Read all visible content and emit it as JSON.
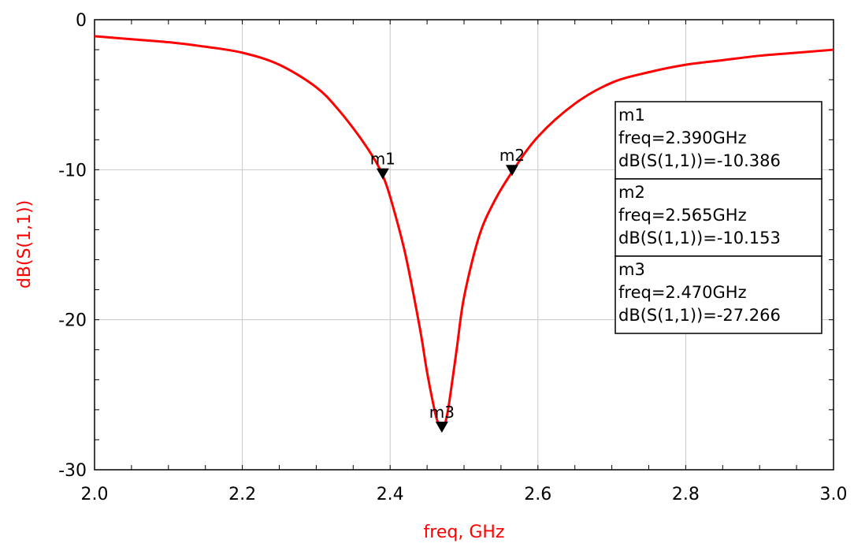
{
  "chart_data": {
    "type": "line",
    "xlabel": "freq, GHz",
    "ylabel": "dB(S(1,1))",
    "xlim": [
      2.0,
      3.0
    ],
    "ylim": [
      -30,
      0
    ],
    "x_ticks": [
      "2.0",
      "2.2",
      "2.4",
      "2.6",
      "2.8",
      "3.0"
    ],
    "y_ticks": [
      "0",
      "-10",
      "-20",
      "-30"
    ],
    "grid": true,
    "series": [
      {
        "color": "#ff0000",
        "x": [
          2.0,
          2.05,
          2.1,
          2.15,
          2.2,
          2.25,
          2.3,
          2.33,
          2.36,
          2.38,
          2.39,
          2.4,
          2.42,
          2.44,
          2.45,
          2.46,
          2.465,
          2.47,
          2.475,
          2.48,
          2.49,
          2.5,
          2.52,
          2.54,
          2.565,
          2.6,
          2.65,
          2.7,
          2.75,
          2.8,
          2.85,
          2.9,
          2.95,
          3.0
        ],
        "y": [
          -1.1,
          -1.3,
          -1.5,
          -1.8,
          -2.2,
          -3.0,
          -4.5,
          -6.0,
          -7.9,
          -9.4,
          -10.386,
          -11.8,
          -15.5,
          -20.5,
          -23.5,
          -26.0,
          -26.9,
          -27.266,
          -26.8,
          -25.5,
          -22.0,
          -18.5,
          -14.5,
          -12.2,
          -10.153,
          -7.8,
          -5.6,
          -4.2,
          -3.5,
          -3.0,
          -2.7,
          -2.4,
          -2.2,
          -2.0
        ]
      }
    ],
    "markers": [
      {
        "name": "m1",
        "x": 2.39,
        "y": -10.386,
        "lines": [
          "m1",
          "freq=2.390GHz",
          "dB(S(1,1))=-10.386"
        ]
      },
      {
        "name": "m2",
        "x": 2.565,
        "y": -10.153,
        "lines": [
          "m2",
          "freq=2.565GHz",
          "dB(S(1,1))=-10.153"
        ]
      },
      {
        "name": "m3",
        "x": 2.47,
        "y": -27.266,
        "lines": [
          "m3",
          "freq=2.470GHz",
          "dB(S(1,1))=-27.266"
        ]
      }
    ],
    "axis_title_color": "#ff0000"
  }
}
